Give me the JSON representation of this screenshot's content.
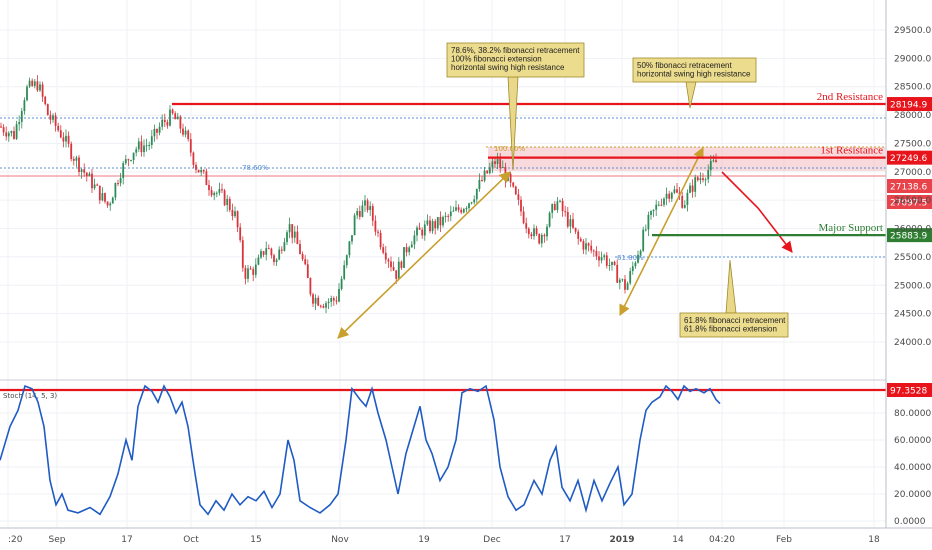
{
  "chart_data": {
    "type": "candlestick",
    "main": {
      "y_ticks": [
        24000,
        24500,
        25000,
        25500,
        26000,
        26500,
        27000,
        27500,
        28000,
        28500,
        29000,
        29500
      ],
      "y_tick_labels": [
        "24000.0",
        "24500.0",
        "25000.0",
        "25500.0",
        "26000.0",
        "26500.0",
        "27000.0",
        "27500.0",
        "28000.0",
        "28500.0",
        "29000.0",
        "29500.0"
      ],
      "levels": [
        {
          "name": "2nd Resistance",
          "value": 28194.9,
          "tag": "28194.9",
          "color": "#e8141c"
        },
        {
          "name": "1st Resistance",
          "value": 27249.6,
          "tag": "27249.6",
          "color": "#e8141c"
        },
        {
          "name": "Major Support",
          "value": 25883.9,
          "tag": "25883.9",
          "color": "#2e7d32"
        }
      ],
      "price_tags": [
        {
          "value": 27138.6,
          "tag": "27138.6",
          "color": "#e8434b"
        },
        {
          "value": 27097.5,
          "tag": "27097.5",
          "color": "#e8434b"
        }
      ],
      "fib_labels": [
        "78.60%",
        "100.00%",
        "61.80%"
      ],
      "annotations": [
        {
          "lines": [
            "78.6%, 38.2% fibonacci retracement",
            "100% fibonacci extension",
            "horizontal swing high resistance"
          ]
        },
        {
          "lines": [
            "50% fibonacci retracement",
            "horizontal swing high resistance"
          ]
        },
        {
          "lines": [
            "61.8% fibonacci retracement",
            "61.8% fibonacci extension"
          ]
        }
      ]
    },
    "stoch": {
      "label": "Stoch (14, 5, 3)",
      "y_ticks": [
        0,
        20,
        40,
        60,
        80
      ],
      "y_tick_labels": [
        "0.0000",
        "20.0000",
        "40.0000",
        "60.0000",
        "80.0000"
      ],
      "level": {
        "value": 97.3528,
        "tag": "97.3528",
        "color": "#e8141c"
      },
      "line_color": "#1f5bc4"
    },
    "x_ticks": [
      ":20",
      "Sep",
      "17",
      "Oct",
      "15",
      "Nov",
      "19",
      "Dec",
      "17",
      "2019",
      "14",
      "04:20",
      "Feb",
      "18"
    ]
  }
}
